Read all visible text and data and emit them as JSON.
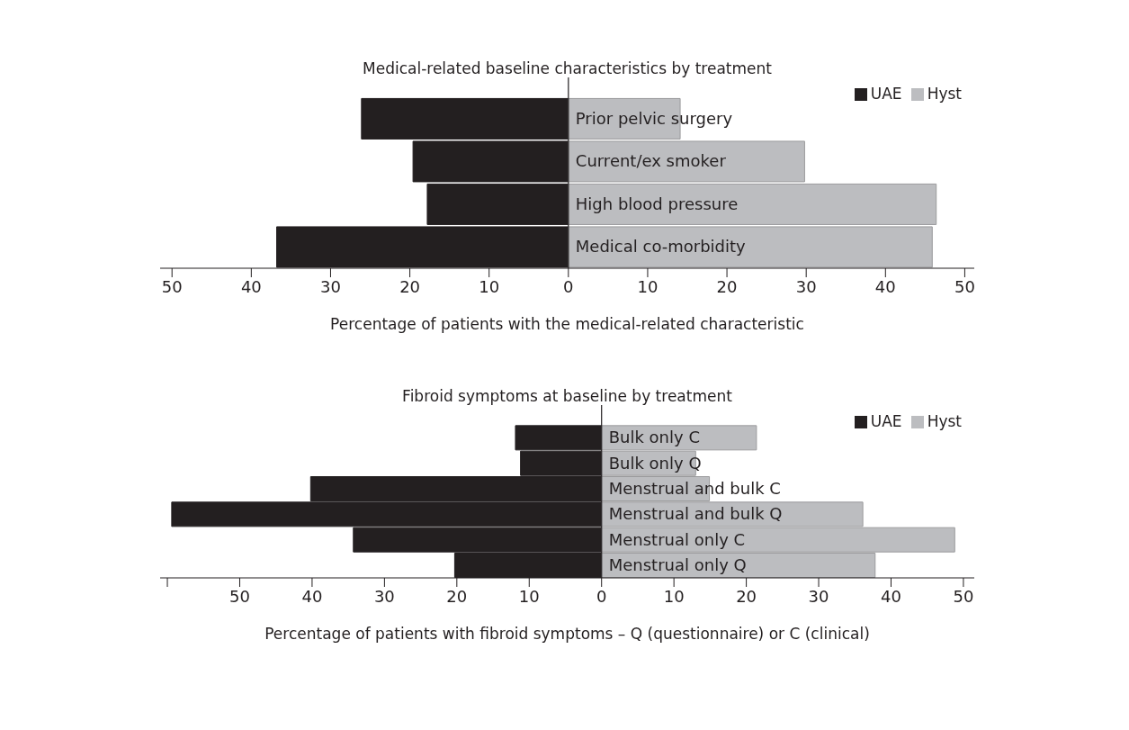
{
  "chart_data": [
    {
      "type": "bar",
      "orientation": "horizontal",
      "title": "Medical-related baseline characteristics by treatment",
      "xlabel": "Percentage of patients with the medical-related characteristic",
      "categories": [
        "Prior pelvic surgery",
        "Current/ex smoker",
        "High blood pressure",
        "Medical co-morbidity"
      ],
      "series": [
        {
          "name": "UAE",
          "color": "#231f20",
          "values": [
            -26.1,
            -19.6,
            -17.8,
            -36.8
          ]
        },
        {
          "name": "Hyst",
          "color": "#bcbdc0",
          "values": [
            14.1,
            29.8,
            46.4,
            45.9
          ]
        }
      ],
      "xlim": [
        -51.5,
        51.2
      ],
      "xticks": [
        {
          "value": -50,
          "label": "50"
        },
        {
          "value": -40,
          "label": "40"
        },
        {
          "value": -30,
          "label": "30"
        },
        {
          "value": -20,
          "label": "20"
        },
        {
          "value": -10,
          "label": "10"
        },
        0,
        10,
        20,
        30,
        40,
        50
      ],
      "legend": "top right",
      "grid": false,
      "stacked": true
    },
    {
      "type": "bar",
      "orientation": "horizontal",
      "title": "Fibroid symptoms at baseline by treatment",
      "xlabel": "Percentage of patients with fibroid symptoms – Q (questionnaire) or C (clinical)",
      "categories": [
        "Bulk only C",
        "Bulk only Q",
        "Menstrual and bulk C",
        "Menstrual and bulk Q",
        "Menstrual only C",
        "Menstrual only Q"
      ],
      "series": [
        {
          "name": "UAE",
          "color": "#231f20",
          "values": [
            -11.9,
            -11.2,
            -40.2,
            -59.4,
            -34.3,
            -20.3
          ]
        },
        {
          "name": "Hyst",
          "color": "#bcbdc0",
          "values": [
            21.4,
            13.0,
            14.9,
            36.1,
            48.8,
            37.8
          ]
        }
      ],
      "xlim": [
        -61,
        51.5
      ],
      "xticks": [
        {
          "value": -60,
          "label": null
        },
        {
          "value": -50,
          "label": "50"
        },
        {
          "value": -40,
          "label": "40"
        },
        {
          "value": -30,
          "label": "30"
        },
        {
          "value": -20,
          "label": "20"
        },
        {
          "value": -10,
          "label": "10"
        },
        0,
        10,
        20,
        30,
        40,
        50
      ],
      "legend": "top right",
      "grid": false,
      "stacked": true
    }
  ]
}
